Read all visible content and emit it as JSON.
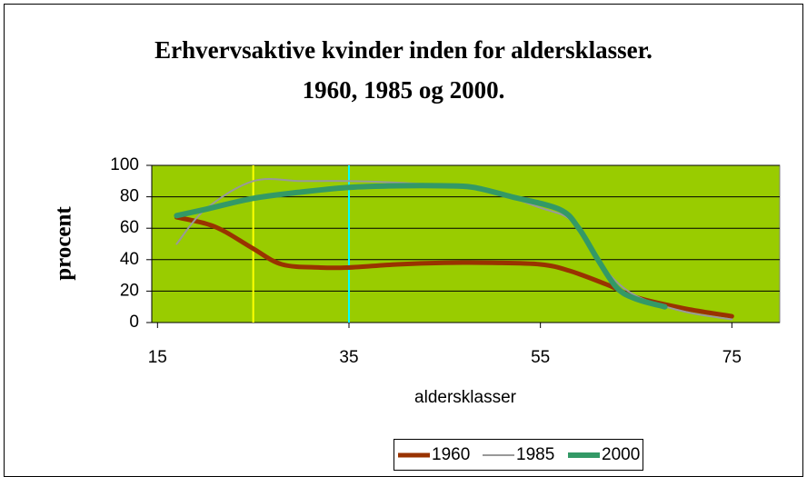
{
  "chart_data": {
    "type": "line",
    "title": [
      "Erhvervsaktive kvinder inden for aldersklasser.",
      "1960, 1985 og 2000."
    ],
    "xlabel": "aldersklasser",
    "ylabel": "procent",
    "xlim": [
      14.4,
      80
    ],
    "xticks": [
      15,
      35,
      55,
      75
    ],
    "ylim": [
      0,
      100
    ],
    "yticks": [
      0,
      20,
      40,
      60,
      80,
      100
    ],
    "grid": true,
    "plot_background": "#99cc00",
    "legend": "bottom",
    "reference_lines": [
      {
        "x": 25,
        "color": "#ffff00"
      },
      {
        "x": 35,
        "color": "#00ffff"
      }
    ],
    "series": [
      {
        "name": "1960",
        "color": "#993300",
        "width": 5,
        "x": [
          17,
          20,
          22,
          25,
          28,
          32,
          35,
          40,
          45,
          50,
          55,
          58,
          62,
          65,
          70,
          75
        ],
        "values": [
          67,
          63,
          58,
          47,
          37,
          35,
          35,
          37,
          38,
          38,
          37,
          33,
          24,
          16,
          9,
          4
        ]
      },
      {
        "name": "1985",
        "color": "#999999",
        "width": 2,
        "x": [
          17,
          20,
          25,
          30,
          35,
          40,
          45,
          50,
          55,
          58,
          60,
          62,
          65,
          70,
          75
        ],
        "values": [
          50,
          72,
          90,
          90,
          90,
          89,
          87,
          83,
          73,
          66,
          50,
          32,
          17,
          7,
          2
        ]
      },
      {
        "name": "2000",
        "color": "#339966",
        "width": 6,
        "x": [
          17,
          20,
          25,
          30,
          35,
          40,
          45,
          48,
          52,
          57,
          59,
          61,
          63,
          65,
          68
        ],
        "values": [
          68,
          72,
          79,
          83,
          86,
          87,
          87,
          86,
          80,
          72,
          60,
          40,
          22,
          15,
          10
        ]
      }
    ]
  }
}
